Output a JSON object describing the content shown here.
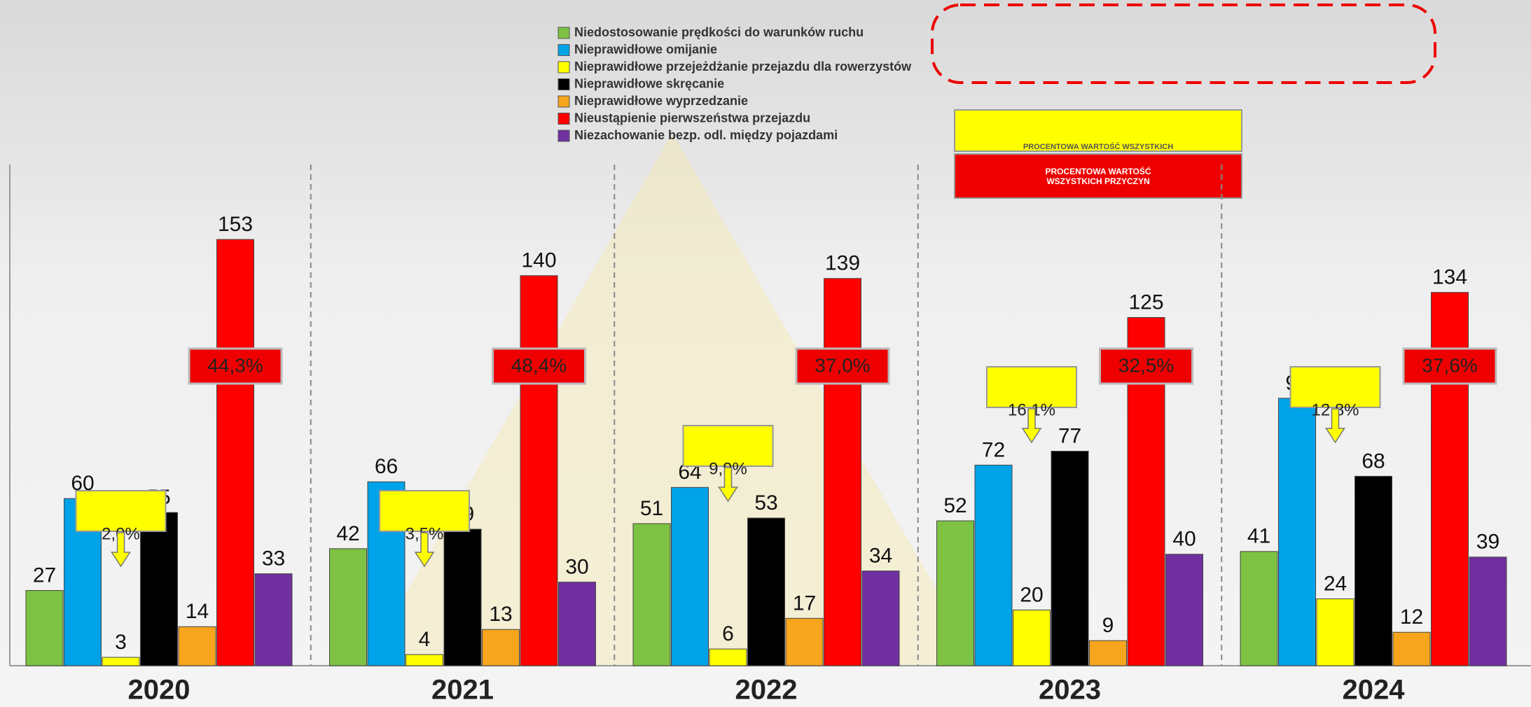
{
  "chart_data": {
    "type": "bar",
    "categories": [
      "2020",
      "2021",
      "2022",
      "2023",
      "2024"
    ],
    "series": [
      {
        "name": "Niedostosowanie prędkości do warunków ruchu",
        "color": "#7dc242",
        "values": [
          27,
          42,
          51,
          52,
          41
        ]
      },
      {
        "name": "Nieprawidłowe omijanie",
        "color": "#00a2e8",
        "values": [
          60,
          66,
          64,
          72,
          96
        ]
      },
      {
        "name": "Nieprawidłowe przejeżdżanie przejazdu dla rowerzystów",
        "color": "#ffff00",
        "values": [
          3,
          4,
          6,
          20,
          24
        ]
      },
      {
        "name": "Nieprawidłowe skręcanie",
        "color": "#000000",
        "values": [
          55,
          49,
          53,
          77,
          68
        ]
      },
      {
        "name": "Nieprawidłowe wyprzedzanie",
        "color": "#f7a51c",
        "values": [
          14,
          13,
          17,
          9,
          12
        ]
      },
      {
        "name": "Nieustąpienie pierwszeństwa przejazdu",
        "color": "#ff0000",
        "values": [
          153,
          140,
          139,
          125,
          134
        ]
      },
      {
        "name": "Niezachowanie bezp. odl. między pojazdami",
        "color": "#7030a0",
        "values": [
          33,
          30,
          34,
          40,
          39
        ]
      }
    ],
    "ylim": [
      0,
      170
    ],
    "share_labels": {
      "yellow": [
        "2,0%",
        "3,5%",
        "9,9%",
        "16,1%",
        "12,8%"
      ],
      "red": [
        "44,3%",
        "48,4%",
        "37,0%",
        "32,5%",
        "37,6%"
      ]
    },
    "key_boxes": {
      "yellow": "PROCENTOWA WARTOŚĆ WSZYSTKICH",
      "red": "PROCENTOWA WARTOŚĆ WSZYSTKICH PRZYCZYN"
    }
  }
}
